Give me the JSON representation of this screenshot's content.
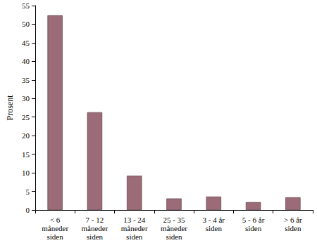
{
  "chart_data": {
    "type": "bar",
    "y_label": "Prosent",
    "categories": [
      "< 6\nmåneder\nsiden",
      "7 - 12\nmåneder\nsiden",
      "13 - 24\nmåneder\nsiden",
      "25 - 35\nmåneder\nsiden",
      "3 - 4 år\nsiden",
      "5 - 6 år\nsiden",
      "> 6 år\nsiden"
    ],
    "values": [
      52.4,
      26.3,
      9.2,
      3.1,
      3.6,
      2.1,
      3.4
    ],
    "color": "#9c6b78",
    "ylim": [
      0,
      55
    ],
    "yticks": [
      0,
      5,
      10,
      15,
      20,
      25,
      30,
      35,
      40,
      45,
      50,
      55
    ],
    "grid": false
  }
}
